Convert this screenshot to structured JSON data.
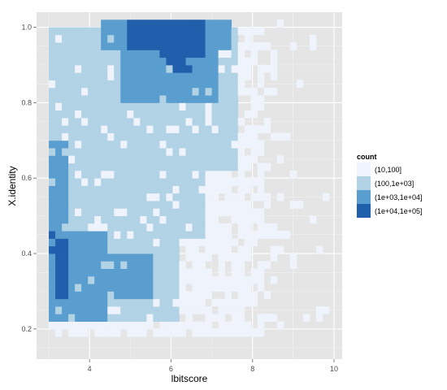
{
  "chart_data": {
    "type": "heatmap",
    "title": "",
    "xlabel": "lbitscore",
    "ylabel": "X.identity",
    "xlim": [
      2.7,
      10.2
    ],
    "ylim": [
      0.12,
      1.04
    ],
    "x_ticks": [
      4,
      6,
      8,
      10
    ],
    "y_ticks": [
      0.2,
      0.4,
      0.6,
      0.8,
      1.0
    ],
    "x_tick_labels": [
      "4",
      "6",
      "8",
      "10"
    ],
    "y_tick_labels": [
      "0.2",
      "0.4",
      "0.6",
      "0.8",
      "1.0"
    ],
    "grid": true,
    "bin_width": {
      "x": 0.16,
      "y": 0.02
    },
    "x_bins_start": 3.0,
    "y_bins_start": 0.18,
    "legend": {
      "title": "count",
      "position": "right",
      "entries": [
        {
          "label": "(10,100]",
          "color": "#eef3fc"
        },
        {
          "label": "(100,1e+03]",
          "color": "#b2d2e6"
        },
        {
          "label": "(1e+03,1e+04]",
          "color": "#5a9ecf"
        },
        {
          "label": "(1e+04,1e+05]",
          "color": "#1f5fab"
        }
      ]
    },
    "panel_background": "#e5e5e5",
    "grid_color": "#ffffff"
  }
}
